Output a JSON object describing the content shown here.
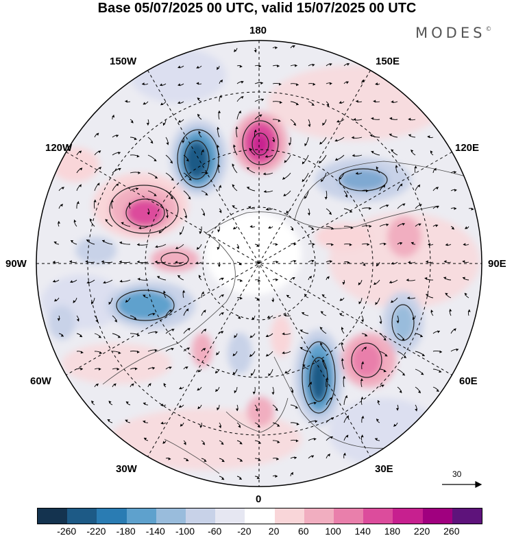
{
  "title": "Base 05/07/2025 00 UTC, valid 15/07/2025 00 UTC",
  "brand": {
    "text": "MODES",
    "mark": "©"
  },
  "map": {
    "projection": "north-polar-stereographic",
    "longitude_labels": {
      "top": "180",
      "top_right": "150E",
      "top_left": "150W",
      "upper_left": "120W",
      "upper_right": "120E",
      "left": "90W",
      "right": "90E",
      "lower_left": "60W",
      "lower_right": "60E",
      "bottom_left": "30W",
      "bottom_right": "30E",
      "bottom": "0"
    },
    "reference_vector": {
      "value": "30"
    }
  },
  "colorbar": {
    "colors": [
      "#14334f",
      "#1d5a86",
      "#2a7cb3",
      "#5ea1cd",
      "#99bcdc",
      "#c8d2e8",
      "#e6e7f2",
      "#ffffff",
      "#f9d6d9",
      "#f1aec0",
      "#e97fab",
      "#dc4c9c",
      "#c7208f",
      "#a0007f",
      "#5e137b"
    ],
    "tick_labels": [
      "-260",
      "-220",
      "-180",
      "-140",
      "-100",
      "-60",
      "-20",
      "20",
      "60",
      "100",
      "140",
      "180",
      "220",
      "260"
    ]
  }
}
